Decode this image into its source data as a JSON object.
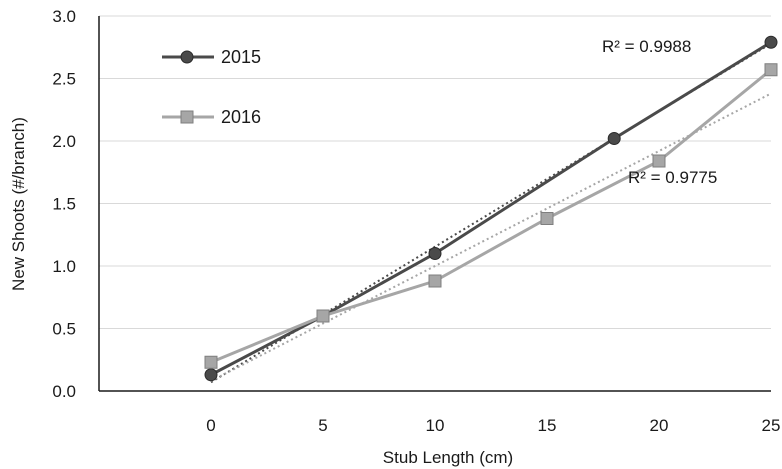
{
  "chart_data": {
    "type": "line",
    "xlabel": "Stub Length (cm)",
    "ylabel": "New Shoots (#/branch)",
    "xlim": [
      -5,
      25
    ],
    "ylim": [
      0,
      3
    ],
    "x_ticks": [
      0,
      5,
      10,
      15,
      20,
      25
    ],
    "y_ticks": [
      0.0,
      0.5,
      1.0,
      1.5,
      2.0,
      2.5,
      3.0
    ],
    "x_tick_labels": [
      "0",
      "5",
      "10",
      "15",
      "20",
      "25"
    ],
    "y_tick_labels": [
      "0.0",
      "0.5",
      "1.0",
      "1.5",
      "2.0",
      "2.5",
      "3.0"
    ],
    "grid": "horizontal",
    "legend_position": "top-left",
    "series": [
      {
        "name": "2015",
        "marker": "circle",
        "color": "#4a4a4a",
        "trend_color": "#4a4a4a",
        "x": [
          0,
          5,
          10,
          18,
          25
        ],
        "y": [
          0.13,
          0.6,
          1.1,
          2.02,
          2.79
        ],
        "trendline": {
          "x": [
            0,
            25
          ],
          "y": [
            0.07,
            2.78
          ],
          "r2_label": "R² = 0.9988"
        }
      },
      {
        "name": "2016",
        "marker": "square",
        "color": "#a6a6a6",
        "trend_color": "#a6a6a6",
        "x": [
          0,
          5,
          10,
          15,
          20,
          25
        ],
        "y": [
          0.23,
          0.6,
          0.88,
          1.38,
          1.84,
          2.57
        ],
        "trendline": {
          "x": [
            0,
            25
          ],
          "y": [
            0.08,
            2.38
          ],
          "r2_label": "R² = 0.9775"
        }
      }
    ]
  }
}
